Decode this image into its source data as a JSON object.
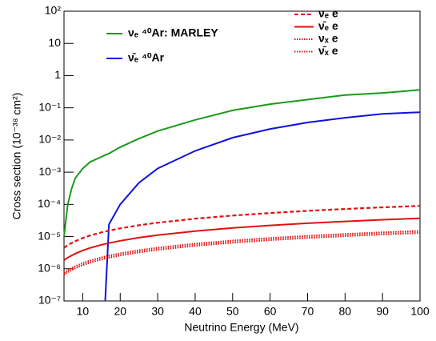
{
  "chart_data": {
    "type": "line",
    "xlabel": "Neutrino Energy (MeV)",
    "ylabel": "Cross section (10⁻³⁸ cm²)",
    "x": [
      5,
      6,
      7,
      8,
      10,
      12,
      15,
      16,
      17,
      20,
      25,
      30,
      40,
      50,
      60,
      70,
      80,
      90,
      100
    ],
    "series": [
      {
        "name": "νₑ ⁴⁰Ar: MARLEY",
        "color": "#1a9a1a",
        "style": "solid",
        "legend": "top-left",
        "values": [
          1e-05,
          0.0001,
          0.0003,
          0.00065,
          0.0013,
          0.0021,
          0.003,
          0.0034,
          0.0038,
          0.006,
          0.011,
          0.019,
          0.042,
          0.083,
          0.13,
          0.18,
          0.25,
          0.29,
          0.36
        ]
      },
      {
        "name": "ν̄ₑ ⁴⁰Ar",
        "color": "#1010e0",
        "style": "solid",
        "legend": "top-left",
        "values": [
          null,
          null,
          null,
          null,
          null,
          null,
          null,
          1e-07,
          2.4e-05,
          0.0001,
          0.00047,
          0.0013,
          0.0046,
          0.0118,
          0.022,
          0.035,
          0.049,
          0.065,
          0.073
        ]
      },
      {
        "name": "νₑ e",
        "color": "#e01010",
        "style": "dashed",
        "legend": "top-right",
        "values": [
          4.5e-06,
          5.4e-06,
          6.3e-06,
          7.2e-06,
          9e-06,
          1.08e-05,
          1.35e-05,
          1.44e-05,
          1.53e-05,
          1.8e-05,
          2.25e-05,
          2.7e-05,
          3.6e-05,
          4.5e-05,
          5.4e-05,
          6.3e-05,
          7.2e-05,
          8.1e-05,
          9e-05
        ]
      },
      {
        "name": "ν̄ₑ e",
        "color": "#e01010",
        "style": "solid",
        "legend": "top-right",
        "values": [
          1.85e-06,
          2.22e-06,
          2.59e-06,
          2.96e-06,
          3.7e-06,
          4.44e-06,
          5.55e-06,
          5.92e-06,
          6.29e-06,
          7.4e-06,
          9.25e-06,
          1.11e-05,
          1.48e-05,
          1.85e-05,
          2.22e-05,
          2.59e-05,
          2.96e-05,
          3.33e-05,
          3.7e-05
        ]
      },
      {
        "name": "νₓ e",
        "color": "#e01010",
        "style": "dotted",
        "legend": "top-right",
        "values": [
          7.5e-07,
          9e-07,
          1.05e-06,
          1.2e-06,
          1.5e-06,
          1.8e-06,
          2.25e-06,
          2.4e-06,
          2.55e-06,
          3e-06,
          3.75e-06,
          4.5e-06,
          6e-06,
          7.5e-06,
          9e-06,
          1.05e-05,
          1.2e-05,
          1.35e-05,
          1.5e-05
        ]
      },
      {
        "name": "ν̄ₓ e",
        "color": "#e01010",
        "style": "dotted",
        "legend": "top-right",
        "values": [
          6.5e-07,
          7.8e-07,
          9.1e-07,
          1.04e-06,
          1.3e-06,
          1.56e-06,
          1.95e-06,
          2.08e-06,
          2.21e-06,
          2.6e-06,
          3.25e-06,
          3.9e-06,
          5.2e-06,
          6.5e-06,
          7.8e-06,
          9.1e-06,
          1.04e-05,
          1.17e-05,
          1.3e-05
        ]
      }
    ],
    "xlim": [
      5,
      100
    ],
    "xticks": [
      10,
      20,
      30,
      40,
      50,
      60,
      70,
      80,
      90,
      100
    ],
    "ylog": true,
    "ylim": [
      1e-07,
      100
    ],
    "yticks": [
      {
        "value": 100,
        "label": "10²"
      },
      10,
      1,
      {
        "value": 0.1,
        "label": "10⁻¹"
      },
      {
        "value": 0.01,
        "label": "10⁻²"
      },
      {
        "value": 0.001,
        "label": "10⁻³"
      },
      {
        "value": 0.0001,
        "label": "10⁻⁴"
      },
      {
        "value": 1e-05,
        "label": "10⁻⁵"
      },
      {
        "value": 1e-06,
        "label": "10⁻⁶"
      },
      {
        "value": 1e-07,
        "label": "10⁻⁷"
      }
    ]
  }
}
